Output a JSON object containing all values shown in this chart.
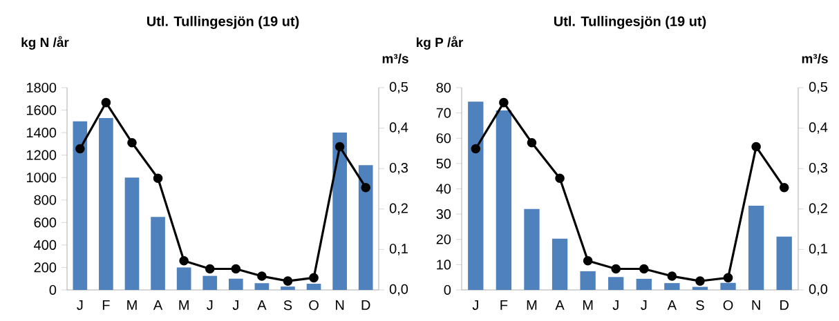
{
  "chart_data": [
    {
      "type": "bar",
      "title": "Utl. Tullingesjön (19 ut)",
      "ylabel": "kg N /år",
      "y2label": "m³/s",
      "categories": [
        "J",
        "F",
        "M",
        "A",
        "M",
        "J",
        "J",
        "A",
        "S",
        "O",
        "N",
        "D"
      ],
      "series": [
        {
          "color": "#4f81bd",
          "values": [
            1500,
            1530,
            1000,
            650,
            200,
            125,
            100,
            60,
            30,
            55,
            1400,
            1110
          ]
        },
        {
          "type": "line",
          "axis": "y2",
          "color": "#000000",
          "marker": "circle",
          "values": [
            0.349,
            0.463,
            0.364,
            0.276,
            0.072,
            0.052,
            0.052,
            0.034,
            0.022,
            0.03,
            0.354,
            0.253
          ]
        }
      ],
      "ylim": [
        0,
        1800
      ],
      "yticks": [
        0,
        200,
        400,
        600,
        800,
        1000,
        1200,
        1400,
        1600,
        1800
      ],
      "y2lim": [
        0,
        0.5
      ],
      "y2ticks": [
        {
          "value": 0,
          "label": "0,0"
        },
        {
          "value": 0.1,
          "label": "0,1"
        },
        {
          "value": 0.2,
          "label": "0,2"
        },
        {
          "value": 0.3,
          "label": "0,3"
        },
        {
          "value": 0.4,
          "label": "0,4"
        },
        {
          "value": 0.5,
          "label": "0,5"
        }
      ]
    },
    {
      "type": "bar",
      "title": "Utl. Tullingesjön (19 ut)",
      "ylabel": "kg P /år",
      "y2label": "m³/s",
      "categories": [
        "J",
        "F",
        "M",
        "A",
        "M",
        "J",
        "J",
        "A",
        "S",
        "O",
        "N",
        "D"
      ],
      "series": [
        {
          "color": "#4f81bd",
          "values": [
            74.5,
            71,
            32,
            20.3,
            7.4,
            5.1,
            4.4,
            2.7,
            1.2,
            2.8,
            33.3,
            21.1
          ]
        },
        {
          "type": "line",
          "axis": "y2",
          "color": "#000000",
          "marker": "circle",
          "values": [
            0.349,
            0.463,
            0.364,
            0.276,
            0.072,
            0.052,
            0.052,
            0.034,
            0.022,
            0.03,
            0.354,
            0.253
          ]
        }
      ],
      "ylim": [
        0,
        80
      ],
      "yticks": [
        0,
        10,
        20,
        30,
        40,
        50,
        60,
        70,
        80
      ],
      "y2lim": [
        0,
        0.5
      ],
      "y2ticks": [
        {
          "value": 0,
          "label": "0,0"
        },
        {
          "value": 0.1,
          "label": "0,1"
        },
        {
          "value": 0.2,
          "label": "0,2"
        },
        {
          "value": 0.3,
          "label": "0,3"
        },
        {
          "value": 0.4,
          "label": "0,4"
        },
        {
          "value": 0.5,
          "label": "0,5"
        }
      ]
    }
  ]
}
